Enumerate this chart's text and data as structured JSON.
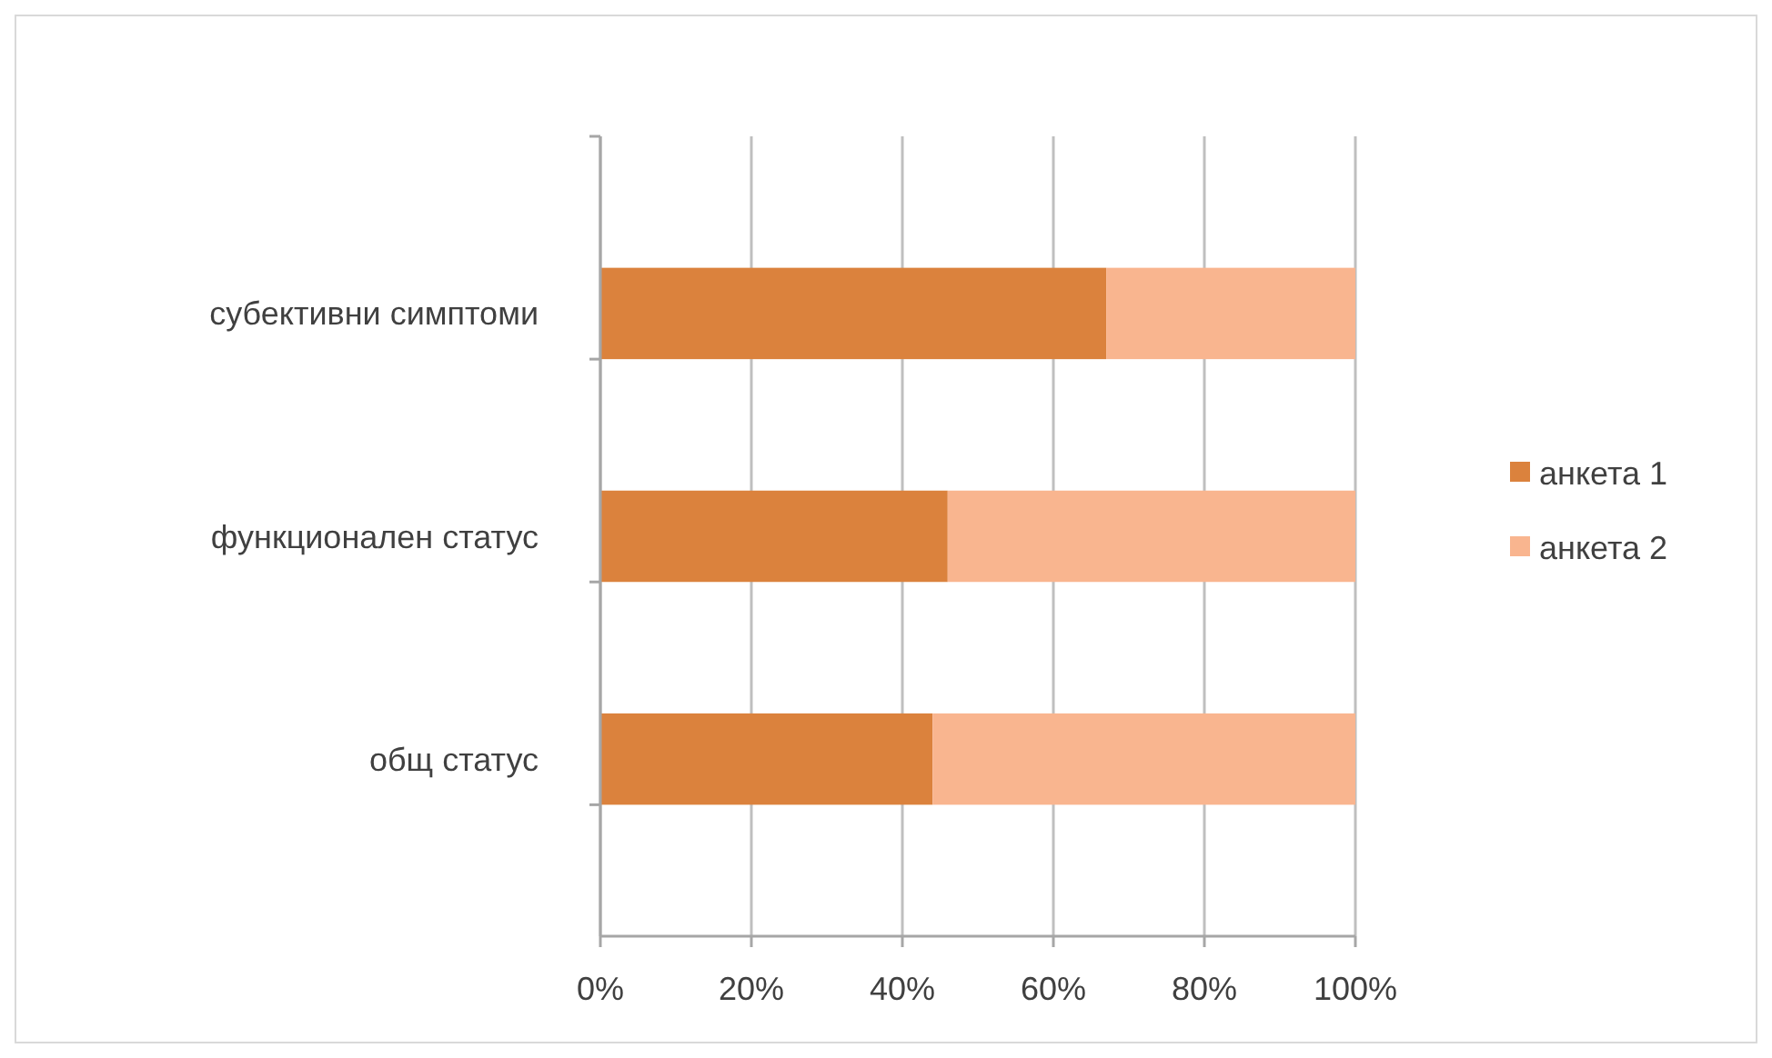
{
  "chart_data": {
    "type": "bar",
    "orientation": "horizontal",
    "stacked": true,
    "categories": [
      "субективни симптоми",
      "функционален статус",
      "общ статус"
    ],
    "series": [
      {
        "name": "анкета 1",
        "color": "#db823d",
        "values": [
          67,
          46,
          44
        ]
      },
      {
        "name": "анкета 2",
        "color": "#f9b58f",
        "values": [
          33,
          54,
          56
        ]
      }
    ],
    "xlim": [
      0,
      100
    ],
    "xticks": [
      {
        "value": 0,
        "label": "0%"
      },
      {
        "value": 20,
        "label": "20%"
      },
      {
        "value": 40,
        "label": "40%"
      },
      {
        "value": 60,
        "label": "60%"
      },
      {
        "value": 80,
        "label": "80%"
      },
      {
        "value": 100,
        "label": "100%"
      }
    ],
    "grid": "x",
    "legend": "right"
  }
}
